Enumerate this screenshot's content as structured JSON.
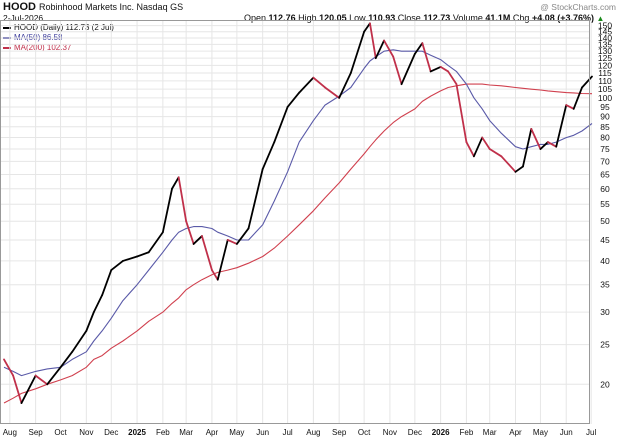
{
  "header": {
    "ticker": "HOOD",
    "company": "Robinhood Markets Inc.  Nasdaq GS",
    "date": "2-Jul-2026",
    "watermark": "@ StockCharts.com",
    "quote": {
      "open_label": "Open",
      "open": "112.76",
      "high_label": "High",
      "high": "120.05",
      "low_label": "Low",
      "low": "110.93",
      "close_label": "Close",
      "close": "112.73",
      "volume_label": "Volume",
      "volume": "41.1M",
      "chg_label": "Chg",
      "chg": "+4.08 (+3.76%)",
      "chg_icon": "up-triangle-icon"
    }
  },
  "legend": [
    {
      "label": "HOOD (Daily) 112.73 (2 Jul)",
      "color": "#000000"
    },
    {
      "label": "MA(50) 86.58",
      "color": "#3b3b9a"
    },
    {
      "label": "MA(200) 102.37",
      "color": "#c0304a"
    }
  ],
  "colors": {
    "price_up": "#000000",
    "price_down": "#c0304a",
    "ma50": "#5a5aa8",
    "ma200": "#d0404e",
    "grid": "#e6e6e6"
  },
  "chart_data": {
    "type": "line",
    "x_ticks": [
      "Aug",
      "Sep",
      "Oct",
      "Nov",
      "Dec",
      "2025",
      "Feb",
      "Mar",
      "Apr",
      "May",
      "Jun",
      "Jul",
      "Aug",
      "Sep",
      "Oct",
      "Nov",
      "Dec",
      "2026",
      "Feb",
      "Mar",
      "Apr",
      "May",
      "Jun",
      "Jul"
    ],
    "y_ticks": [
      20,
      25,
      30,
      35,
      40,
      45,
      50,
      55,
      60,
      65,
      70,
      75,
      80,
      85,
      90,
      95,
      100,
      105,
      110,
      115,
      120,
      125,
      130,
      135,
      140,
      145,
      150
    ],
    "ylim": [
      16,
      154
    ],
    "y_axis_side": "right",
    "log_scale": true,
    "grid": true,
    "x": [
      "2024-07-25",
      "2024-08-05",
      "2024-08-15",
      "2024-09-01",
      "2024-09-15",
      "2024-10-01",
      "2024-10-15",
      "2024-11-01",
      "2024-11-10",
      "2024-11-20",
      "2024-12-01",
      "2024-12-15",
      "2025-01-01",
      "2025-01-15",
      "2025-02-01",
      "2025-02-12",
      "2025-02-20",
      "2025-03-01",
      "2025-03-10",
      "2025-03-20",
      "2025-04-01",
      "2025-04-08",
      "2025-04-20",
      "2025-05-01",
      "2025-05-15",
      "2025-06-01",
      "2025-06-15",
      "2025-07-01",
      "2025-07-15",
      "2025-08-01",
      "2025-08-15",
      "2025-09-01",
      "2025-09-15",
      "2025-10-01",
      "2025-10-08",
      "2025-10-15",
      "2025-10-25",
      "2025-11-05",
      "2025-11-15",
      "2025-12-01",
      "2025-12-10",
      "2025-12-20",
      "2026-01-01",
      "2026-01-10",
      "2026-01-20",
      "2026-02-01",
      "2026-02-10",
      "2026-02-20",
      "2026-03-01",
      "2026-03-15",
      "2026-04-01",
      "2026-04-10",
      "2026-04-20",
      "2026-05-01",
      "2026-05-10",
      "2026-05-20",
      "2026-06-01",
      "2026-06-10",
      "2026-06-20",
      "2026-07-02"
    ],
    "series": [
      {
        "name": "HOOD (Daily)",
        "values": [
          23,
          21,
          18,
          21,
          20,
          22,
          24,
          27,
          30,
          33,
          38,
          40,
          41,
          42,
          47,
          60,
          64,
          50,
          44,
          46,
          38,
          36,
          45,
          44,
          48,
          67,
          78,
          95,
          103,
          112,
          106,
          100,
          115,
          145,
          152,
          125,
          138,
          126,
          108,
          128,
          136,
          116,
          119,
          116,
          108,
          78,
          72,
          80,
          75,
          72,
          66,
          68,
          84,
          75,
          78,
          76,
          96,
          94,
          106,
          112.73
        ]
      },
      {
        "name": "MA(50)",
        "values": [
          22,
          21.5,
          21,
          21.5,
          21.8,
          22,
          23,
          24,
          25.5,
          27,
          29,
          32,
          35,
          38,
          42,
          45,
          47,
          48,
          48.5,
          48.5,
          48,
          47,
          46,
          45,
          45,
          49,
          56,
          66,
          78,
          88,
          96,
          101,
          106,
          118,
          123,
          126,
          130,
          131,
          130,
          130,
          130,
          127,
          124,
          120,
          116,
          108,
          100,
          94,
          88,
          82,
          76,
          75,
          76,
          77,
          77,
          78,
          80,
          81,
          83,
          86.58
        ]
      },
      {
        "name": "MA(200)",
        "values": [
          18,
          18.5,
          19,
          19.5,
          20,
          20.5,
          21,
          22,
          23,
          23.5,
          24.5,
          25.5,
          27,
          28.5,
          30,
          31.5,
          32.5,
          34,
          35,
          36,
          37,
          37.5,
          38,
          38.5,
          39.5,
          41,
          43,
          46,
          49,
          53,
          57,
          62,
          67,
          73,
          76,
          79,
          83,
          87,
          90,
          94,
          98,
          101,
          104,
          106,
          107,
          108,
          108,
          108,
          107.5,
          107,
          106,
          105.5,
          105,
          104.5,
          104,
          103.5,
          103,
          102.8,
          102.5,
          102.37
        ]
      }
    ]
  }
}
